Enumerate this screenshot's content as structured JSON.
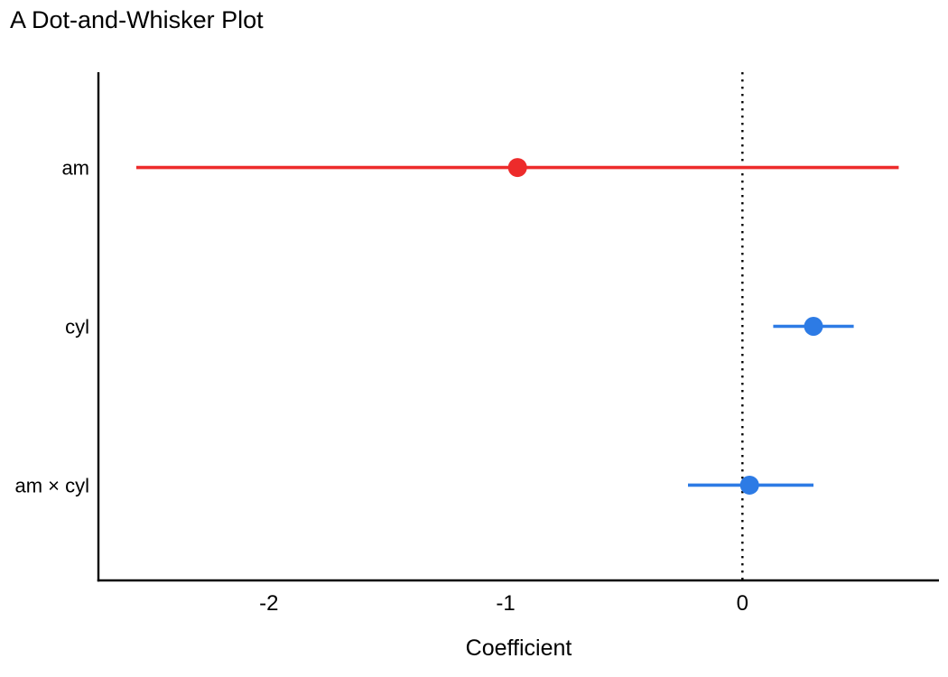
{
  "page": {
    "background_color": "#ffffff",
    "text_color": "#000000"
  },
  "chart_data": {
    "type": "scatter",
    "subtype": "dot-and-whisker",
    "title": "A Dot-and-Whisker Plot",
    "xlabel": "Coefficient",
    "ylabel": "",
    "xlim": [
      -2.72,
      0.83
    ],
    "grid": false,
    "legend": false,
    "axis_color": "#000000",
    "xticks": [
      {
        "value": -2,
        "label": "-2"
      },
      {
        "value": -1,
        "label": "-1"
      },
      {
        "value": 0,
        "label": "0"
      }
    ],
    "zero_line": {
      "value": 0,
      "style": "dotted",
      "color": "#000000"
    },
    "rows": [
      {
        "label": "am",
        "estimate": -0.95,
        "conf_low": -2.56,
        "conf_high": 0.66,
        "color": "#ed2b2b"
      },
      {
        "label": "cyl",
        "estimate": 0.3,
        "conf_low": 0.13,
        "conf_high": 0.47,
        "color": "#2d7be5"
      },
      {
        "label": "am × cyl",
        "estimate": 0.03,
        "conf_low": -0.23,
        "conf_high": 0.3,
        "color": "#2d7be5"
      }
    ]
  }
}
